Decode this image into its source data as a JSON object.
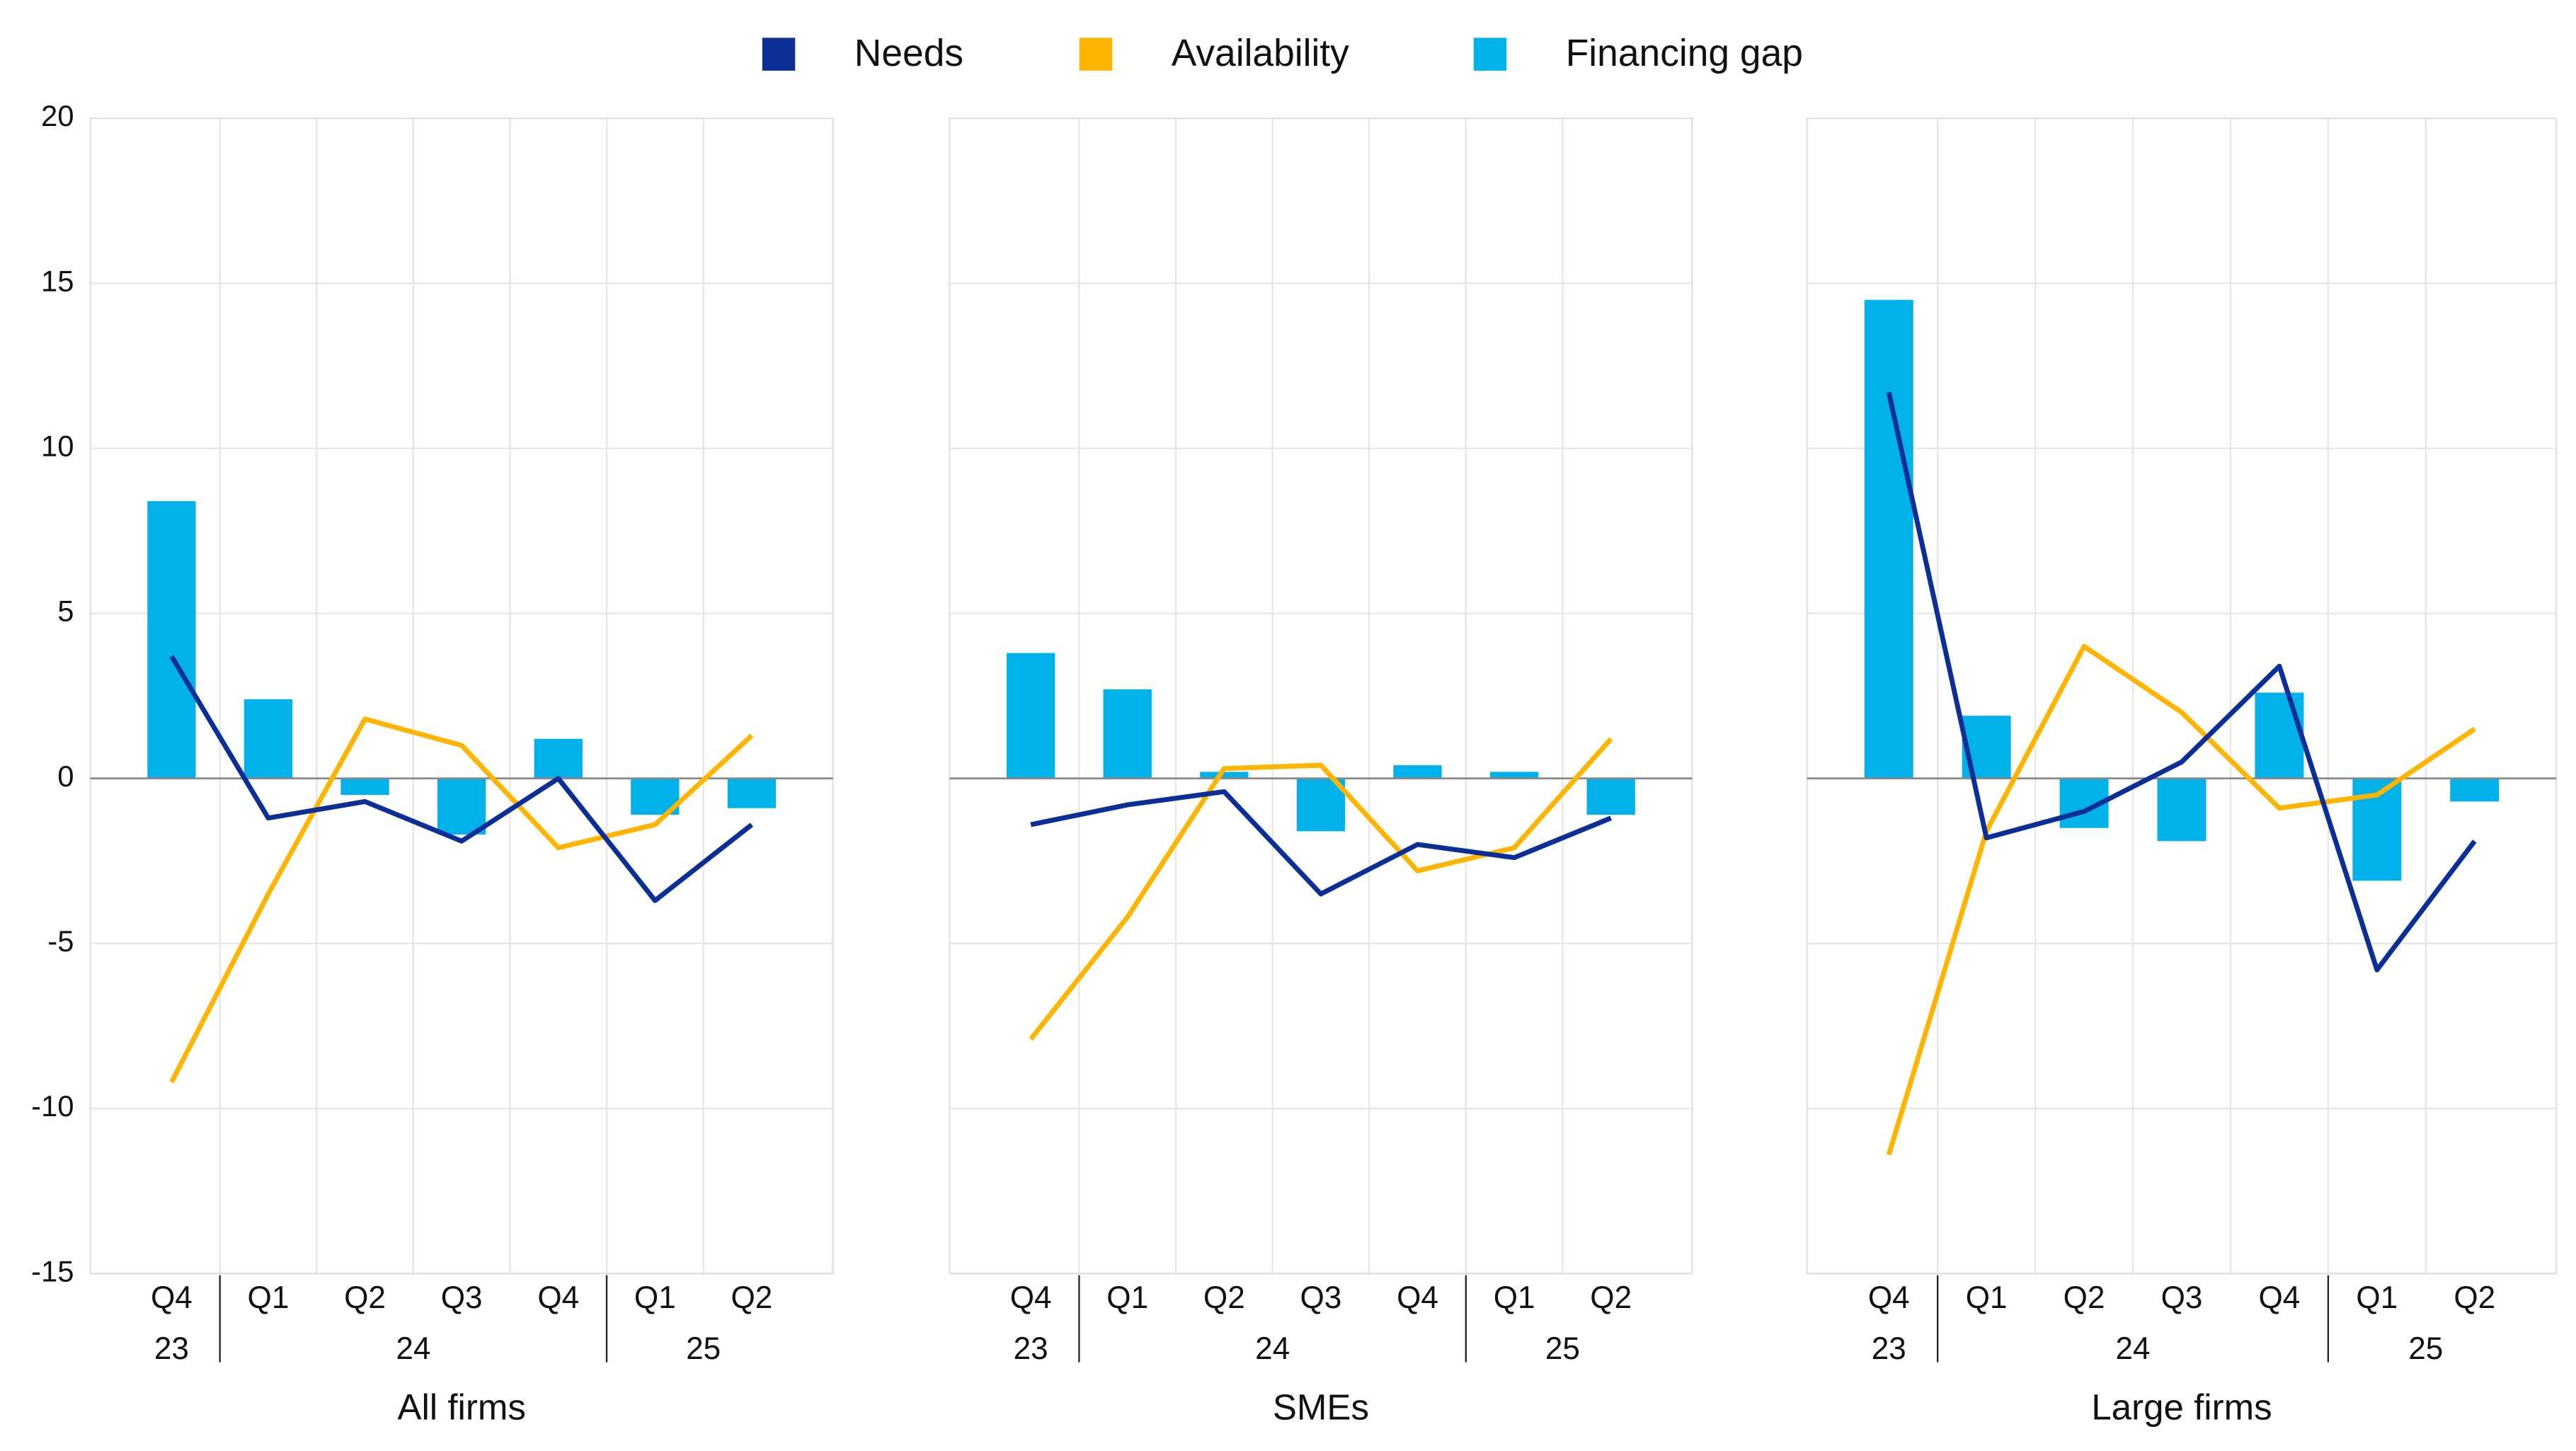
{
  "chart_data": [
    {
      "type": "bar",
      "title": "All firms",
      "ylim": [
        -15,
        20
      ],
      "yticks": [
        -15,
        -10,
        -5,
        0,
        5,
        10,
        15,
        20
      ],
      "ytick_labels": true,
      "grid": true,
      "categories": [
        "Q4",
        "Q1",
        "Q2",
        "Q3",
        "Q4",
        "Q1",
        "Q2"
      ],
      "category_groups": [
        {
          "label": "23",
          "count": 1
        },
        {
          "label": "24",
          "count": 4
        },
        {
          "label": "25",
          "count": 2
        }
      ],
      "series": [
        {
          "name": "Needs",
          "type": "line",
          "color": "#0b2f96",
          "values": [
            3.7,
            -1.2,
            -0.7,
            -1.9,
            0.0,
            -3.7,
            -1.4
          ]
        },
        {
          "name": "Availability",
          "type": "line",
          "color": "#ffb400",
          "values": [
            -9.2,
            -3.5,
            1.8,
            1.0,
            -2.1,
            -1.4,
            1.3
          ]
        },
        {
          "name": "Financing gap",
          "type": "bar",
          "color": "#00b1ea",
          "values": [
            8.4,
            2.4,
            -0.5,
            -1.7,
            1.2,
            -1.1,
            -0.9
          ]
        }
      ]
    },
    {
      "type": "bar",
      "title": "SMEs",
      "ylim": [
        -15,
        20
      ],
      "yticks": [
        -15,
        -10,
        -5,
        0,
        5,
        10,
        15,
        20
      ],
      "ytick_labels": false,
      "grid": true,
      "categories": [
        "Q4",
        "Q1",
        "Q2",
        "Q3",
        "Q4",
        "Q1",
        "Q2"
      ],
      "category_groups": [
        {
          "label": "23",
          "count": 1
        },
        {
          "label": "24",
          "count": 4
        },
        {
          "label": "25",
          "count": 2
        }
      ],
      "series": [
        {
          "type": "line",
          "color": "#0b2f96",
          "values": [
            -1.4,
            -0.8,
            -0.4,
            -3.5,
            -2.0,
            -2.4,
            -1.2
          ]
        },
        {
          "type": "line",
          "color": "#ffb400",
          "values": [
            -7.9,
            -4.2,
            0.3,
            0.4,
            -2.8,
            -2.1,
            1.2
          ]
        },
        {
          "type": "bar",
          "color": "#00b1ea",
          "values": [
            3.8,
            2.7,
            0.2,
            -1.6,
            0.4,
            0.2,
            -1.1
          ]
        }
      ]
    },
    {
      "type": "bar",
      "title": "Large firms",
      "ylim": [
        -15,
        20
      ],
      "yticks": [
        -15,
        -10,
        -5,
        0,
        5,
        10,
        15,
        20
      ],
      "ytick_labels": false,
      "grid": true,
      "categories": [
        "Q4",
        "Q1",
        "Q2",
        "Q3",
        "Q4",
        "Q1",
        "Q2"
      ],
      "category_groups": [
        {
          "label": "23",
          "count": 1
        },
        {
          "label": "24",
          "count": 4
        },
        {
          "label": "25",
          "count": 2
        }
      ],
      "series": [
        {
          "type": "line",
          "color": "#0b2f96",
          "values": [
            11.7,
            -1.8,
            -1.0,
            0.5,
            3.4,
            -5.8,
            -1.9
          ]
        },
        {
          "type": "line",
          "color": "#ffb400",
          "values": [
            -11.4,
            -1.6,
            4.0,
            2.0,
            -0.9,
            -0.5,
            1.5
          ]
        },
        {
          "type": "bar",
          "color": "#00b1ea",
          "values": [
            14.5,
            1.9,
            -1.5,
            -1.9,
            2.6,
            -3.1,
            -0.7
          ]
        }
      ]
    }
  ]
}
